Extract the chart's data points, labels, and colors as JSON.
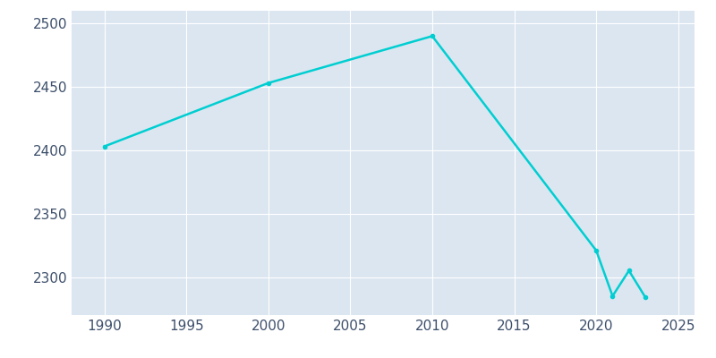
{
  "years": [
    1990,
    2000,
    2010,
    2020,
    2021,
    2022,
    2023
  ],
  "population": [
    2403,
    2453,
    2490,
    2321,
    2285,
    2305,
    2284
  ],
  "line_color": "#00CED1",
  "axes_background_color": "#dce6f1",
  "figure_background": "#ffffff",
  "xlim": [
    1988,
    2026
  ],
  "ylim": [
    2270,
    2510
  ],
  "yticks": [
    2300,
    2350,
    2400,
    2450,
    2500
  ],
  "xticks": [
    1990,
    1995,
    2000,
    2005,
    2010,
    2015,
    2020,
    2025
  ],
  "linewidth": 1.8,
  "grid_color": "#ffffff",
  "tick_label_color": "#3d4f6b",
  "tick_label_size": 11
}
